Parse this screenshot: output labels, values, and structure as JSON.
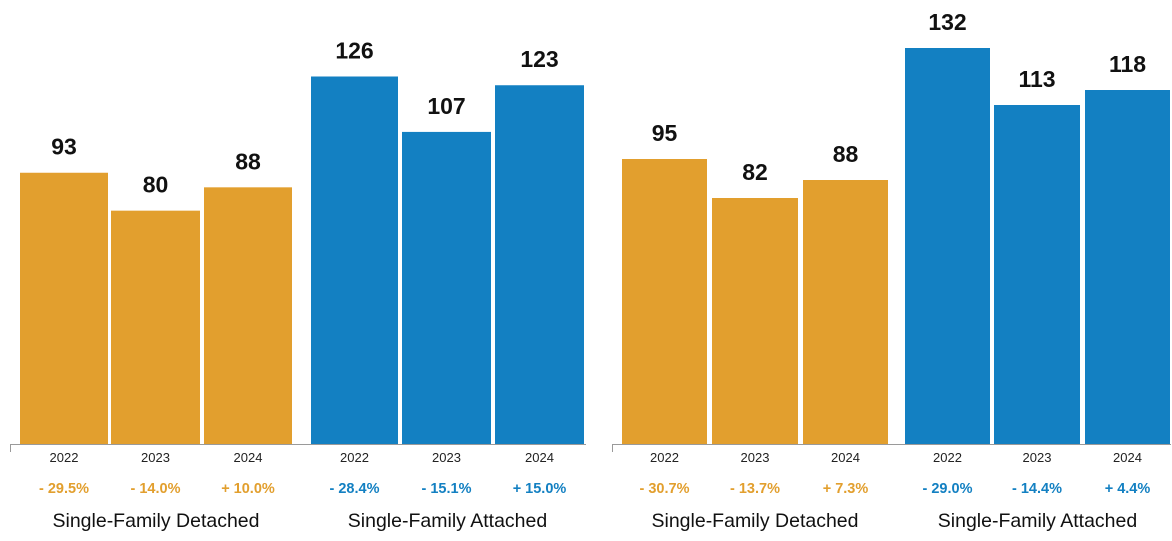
{
  "colors": {
    "detached": "#E29F2E",
    "attached": "#1380C2",
    "axis": "#9a9a9a"
  },
  "chart_data": [
    {
      "type": "bar",
      "title": "",
      "xlabel": "",
      "ylabel": "",
      "ylim": [
        0,
        155
      ],
      "grid": false,
      "legend": "none",
      "groups": [
        {
          "name": "Single-Family Detached",
          "color_key": "detached",
          "bars": [
            {
              "year": "2022",
              "value": 93,
              "value_label": "93",
              "change": "- 29.5%"
            },
            {
              "year": "2023",
              "value": 80,
              "value_label": "80",
              "change": "- 14.0%"
            },
            {
              "year": "2024",
              "value": 88,
              "value_label": "88",
              "change": "+ 10.0%"
            }
          ]
        },
        {
          "name": "Single-Family Attached",
          "color_key": "attached",
          "bars": [
            {
              "year": "2022",
              "value": 126,
              "value_label": "126",
              "change": "- 28.4%"
            },
            {
              "year": "2023",
              "value": 107,
              "value_label": "107",
              "change": "- 15.1%"
            },
            {
              "year": "2024",
              "value": 123,
              "value_label": "123",
              "change": "+ 15.0%"
            }
          ]
        }
      ]
    },
    {
      "type": "bar",
      "title": "",
      "xlabel": "",
      "ylabel": "",
      "ylim": [
        0,
        155
      ],
      "grid": false,
      "legend": "none",
      "groups": [
        {
          "name": "Single-Family Detached",
          "color_key": "detached",
          "bars": [
            {
              "year": "2022",
              "value": 95,
              "value_label": "95",
              "change": "- 30.7%"
            },
            {
              "year": "2023",
              "value": 82,
              "value_label": "82",
              "change": "- 13.7%"
            },
            {
              "year": "2024",
              "value": 88,
              "value_label": "88",
              "change": "+ 7.3%"
            }
          ]
        },
        {
          "name": "Single-Family Attached",
          "color_key": "attached",
          "bars": [
            {
              "year": "2022",
              "value": 132,
              "value_label": "132",
              "change": "- 29.0%"
            },
            {
              "year": "2023",
              "value": 113,
              "value_label": "113",
              "change": "- 14.4%"
            },
            {
              "year": "2024",
              "value": 118,
              "value_label": "118",
              "change": "+ 4.4%"
            }
          ]
        }
      ]
    }
  ]
}
